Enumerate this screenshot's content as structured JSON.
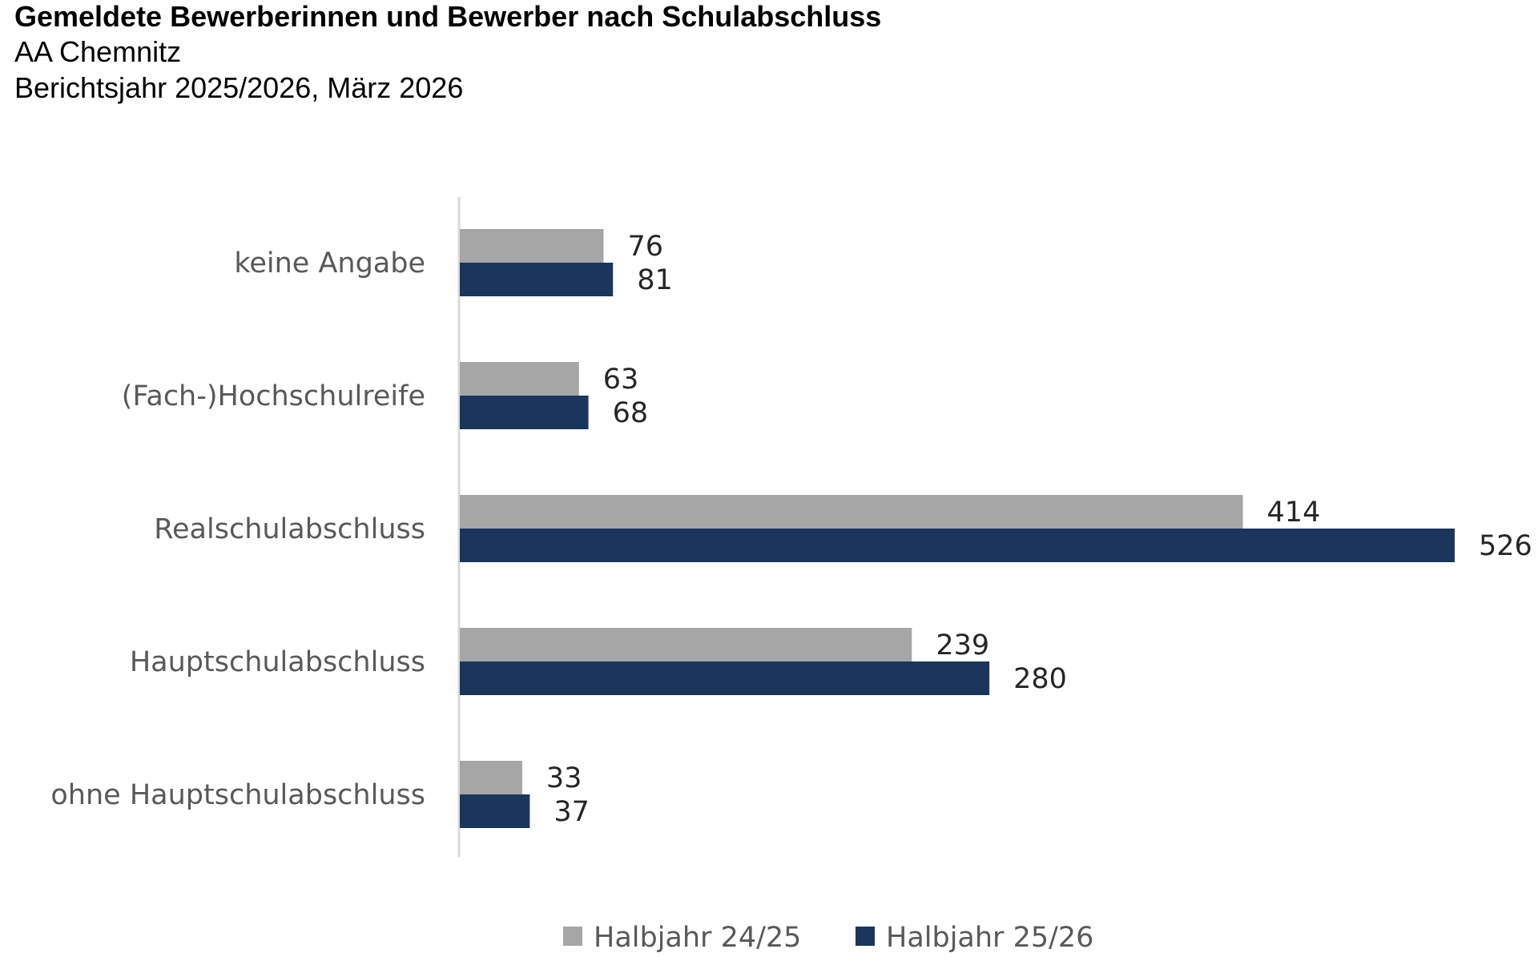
{
  "header": {
    "title": "Gemeldete Bewerberinnen und Bewerber nach Schulabschluss",
    "subtitle1": "AA Chemnitz",
    "subtitle2": "Berichtsjahr 2025/2026, März 2026"
  },
  "chart_data": {
    "type": "bar",
    "orientation": "horizontal",
    "categories": [
      "keine Angabe",
      "(Fach-)Hochschulreife",
      "Realschulabschluss",
      "Hauptschulabschluss",
      "ohne Hauptschulabschluss"
    ],
    "series": [
      {
        "name": "Halbjahr 24/25",
        "color": "#A6A6A6",
        "values": [
          76,
          63,
          414,
          239,
          33
        ]
      },
      {
        "name": "Halbjahr 25/26",
        "color": "#1A365D",
        "values": [
          81,
          68,
          526,
          280,
          37
        ]
      }
    ],
    "xlim": [
      0,
      526
    ],
    "grid": false,
    "data_labels": true,
    "legend_position": "bottom"
  }
}
